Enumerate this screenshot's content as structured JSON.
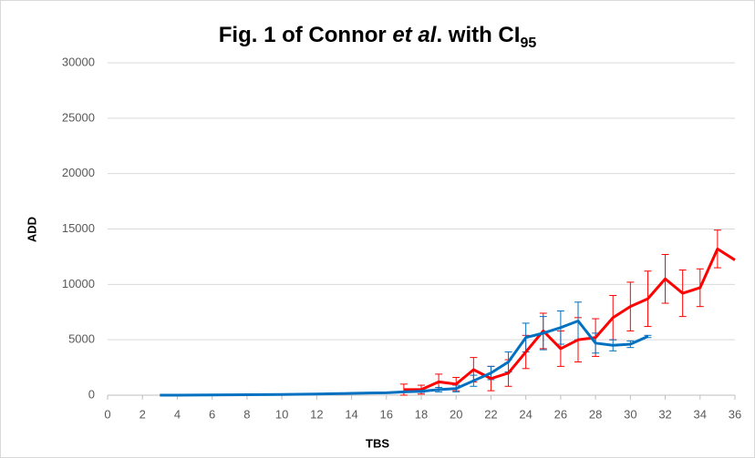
{
  "chart_data": {
    "type": "line",
    "title": [
      "Fig. 1 of Connor ",
      "et al",
      ". with CI",
      "95"
    ],
    "x_label": "TBS",
    "y_label": "ADD",
    "xlim": [
      0,
      36
    ],
    "xticks": [
      0,
      2,
      4,
      6,
      8,
      10,
      12,
      14,
      16,
      18,
      20,
      22,
      24,
      26,
      28,
      30,
      32,
      34,
      36
    ],
    "ylim": [
      0,
      30000
    ],
    "yticks": [
      0,
      5000,
      10000,
      15000,
      20000,
      25000,
      30000
    ],
    "grid": true,
    "series": [
      {
        "color": "#ff0000",
        "x": [
          17,
          18,
          19,
          20,
          21,
          22,
          23,
          24,
          25,
          26,
          27,
          28,
          29,
          30,
          31,
          32,
          33,
          34,
          35,
          36
        ],
        "values": [
          500,
          500,
          1200,
          1000,
          2300,
          1500,
          2000,
          3900,
          5800,
          4200,
          5000,
          5200,
          7000,
          8000,
          8700,
          10500,
          9200,
          9700,
          13200,
          12200
        ],
        "errors": [
          500,
          400,
          700,
          600,
          1100,
          1100,
          1200,
          1500,
          1600,
          1600,
          2000,
          1700,
          2000,
          2200,
          2500,
          2200,
          2100,
          1700,
          1700,
          null
        ]
      },
      {
        "color": "#0070c0",
        "x": [
          3,
          4,
          5,
          6,
          7,
          8,
          9,
          10,
          11,
          12,
          13,
          14,
          15,
          16,
          17,
          18,
          19,
          20,
          21,
          22,
          23,
          24,
          25,
          26,
          27,
          28,
          29,
          30,
          31
        ],
        "values": [
          0,
          0,
          10,
          20,
          30,
          40,
          50,
          60,
          80,
          100,
          130,
          160,
          200,
          220,
          300,
          350,
          500,
          600,
          1300,
          2000,
          3000,
          5200,
          5600,
          6100,
          6700,
          4700,
          4500,
          4600,
          5300
        ],
        "errors": [
          null,
          null,
          null,
          null,
          null,
          null,
          null,
          null,
          null,
          null,
          null,
          null,
          null,
          null,
          null,
          100,
          200,
          300,
          500,
          600,
          900,
          1300,
          1500,
          1500,
          1700,
          900,
          500,
          300,
          100
        ]
      }
    ]
  }
}
